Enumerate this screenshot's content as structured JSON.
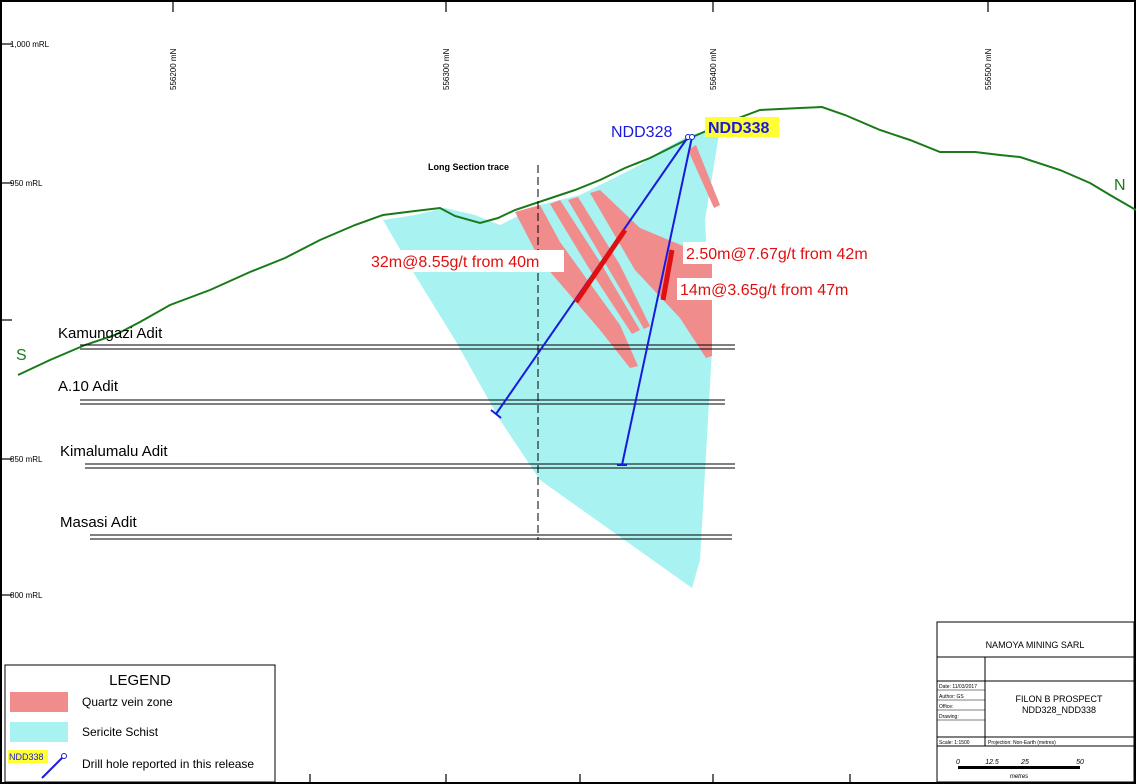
{
  "grid": {
    "rl_labels": [
      "1,000 mRL",
      "950 mRL",
      "850 mRL",
      "800 mRL"
    ],
    "mn_labels": [
      "556200 mN",
      "556300 mN",
      "556400 mN",
      "556500 mN"
    ]
  },
  "section": {
    "trace_label": "Long Section trace",
    "south_label": "S",
    "north_label": "N"
  },
  "adits": [
    "Kamungazi Adit",
    "A.10 Adit",
    "Kimalumalu Adit",
    "Masasi Adit"
  ],
  "holes": {
    "ndd328": "NDD328",
    "ndd338": "NDD338"
  },
  "intercepts": [
    "32m@8.55g/t from 40m",
    "2.50m@7.67g/t from 42m",
    "14m@3.65g/t from 47m"
  ],
  "legend": {
    "title": "LEGEND",
    "quartz": "Quartz vein zone",
    "sericite": "Sericite Schist",
    "drill_tag": "NDD338",
    "drill": "Drill hole reported in this release"
  },
  "title_block": {
    "company": "NAMOYA MINING SARL",
    "project": "FILON B PROSPECT",
    "holes": "NDD328_NDD338",
    "date": "Date: 11/03/2017",
    "author": "Author: GS",
    "office": "Office:",
    "drawing": "Drawing:",
    "scale": "Scale: 1:1500",
    "projection": "Projection: Non-Earth (metres)",
    "bar_labels": [
      "0",
      "12.5",
      "25",
      "50"
    ],
    "bar_unit": "metres"
  },
  "colors": {
    "topo": "#1a7a1a",
    "schist": "#a8f2f2",
    "quartz": "#f08c8c",
    "drill": "#1a1adb",
    "intercept": "#e01010",
    "highlight": "#ffff33"
  }
}
